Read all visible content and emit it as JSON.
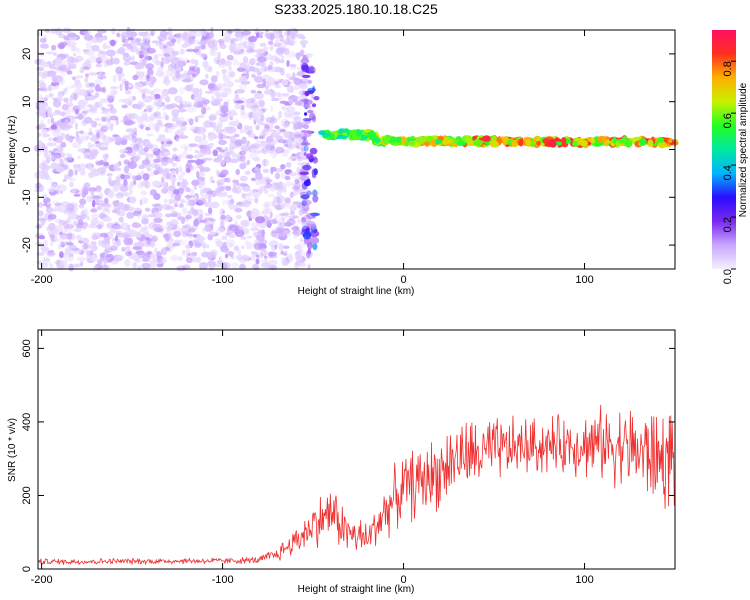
{
  "title": "S233.2025.180.10.18.C25",
  "chart_data": [
    {
      "type": "heatmap",
      "xlabel": "Height of straight line (km)",
      "ylabel": "Frequency (Hz)",
      "xlim": [
        -202,
        150
      ],
      "ylim": [
        -25,
        25
      ],
      "xticks": [
        -200,
        -100,
        0,
        100
      ],
      "yticks": [
        -20,
        -10,
        0,
        10,
        20
      ],
      "xtick_labels": [
        "-200",
        "-100",
        "0",
        "100"
      ],
      "ytick_labels": [
        "-20",
        "-10",
        "0",
        "10",
        "20"
      ],
      "colorbar": {
        "label": "Normalized spectral amplitude",
        "range": [
          0,
          0.92
        ],
        "ticks": [
          0,
          0.2,
          0.4,
          0.6,
          0.8
        ],
        "tick_labels": [
          "0.0",
          "0.2",
          "0.4",
          "0.6",
          "0.8"
        ],
        "colormap": [
          "#f5f0ff",
          "#c9a6ff",
          "#7a28f0",
          "#2a0cff",
          "#00b4ff",
          "#00e8a0",
          "#22ff22",
          "#c8f000",
          "#ffb000",
          "#ff3020",
          "#ff1060"
        ]
      },
      "regions": [
        {
          "name": "broadband noise",
          "x": [
            -202,
            -52
          ],
          "y": [
            -25,
            25
          ],
          "amplitude": [
            0.02,
            0.12
          ]
        },
        {
          "name": "transient",
          "x": [
            -55,
            -48
          ],
          "y": [
            -22,
            18
          ],
          "amplitude": [
            0.1,
            0.35
          ]
        },
        {
          "name": "narrowband tone",
          "x": [
            -45,
            150
          ],
          "y": [
            0,
            5
          ],
          "amplitude": [
            0.3,
            0.9
          ]
        }
      ]
    },
    {
      "type": "line",
      "xlabel": "Height of straight line (km)",
      "ylabel": "SNR (10 * v/v)",
      "xlim": [
        -202,
        150
      ],
      "ylim": [
        0,
        650
      ],
      "xticks": [
        -200,
        -100,
        0,
        100
      ],
      "yticks": [
        0,
        200,
        400,
        600
      ],
      "xtick_labels": [
        "-200",
        "-100",
        "0",
        "100"
      ],
      "ytick_labels": [
        "0",
        "200",
        "400",
        "600"
      ],
      "color": "#f03030",
      "series": [
        {
          "x": [
            -202,
            -180,
            -160,
            -140,
            -120,
            -100,
            -80,
            -70,
            -60,
            -50,
            -40,
            -30,
            -20,
            -10,
            0,
            10,
            20,
            30,
            40,
            50,
            60,
            70,
            80,
            90,
            100,
            110,
            120,
            130,
            140,
            150
          ],
          "y": [
            20,
            20,
            21,
            21,
            22,
            22,
            24,
            40,
            75,
            120,
            155,
            95,
            80,
            160,
            220,
            240,
            265,
            305,
            310,
            320,
            330,
            335,
            335,
            340,
            340,
            340,
            338,
            320,
            300,
            300
          ],
          "spread": [
            10,
            10,
            10,
            10,
            10,
            10,
            12,
            25,
            45,
            75,
            95,
            70,
            60,
            90,
            110,
            120,
            120,
            120,
            120,
            110,
            100,
            95,
            95,
            95,
            110,
            120,
            130,
            150,
            170,
            170
          ]
        }
      ]
    }
  ]
}
